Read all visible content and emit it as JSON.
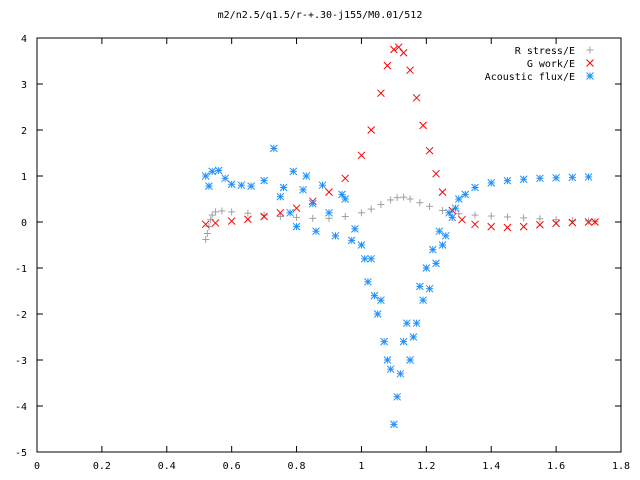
{
  "chart_data": {
    "type": "scatter",
    "title": "m2/n2.5/q1.5/r-+.30-j155/M0.01/512",
    "xlabel": "",
    "ylabel": "",
    "xlim": [
      0,
      1.8
    ],
    "ylim": [
      -5,
      4
    ],
    "xticks": [
      "0",
      "0.2",
      "0.4",
      "0.6",
      "0.8",
      "1",
      "1.2",
      "1.4",
      "1.6",
      "1.8"
    ],
    "yticks": [
      "4",
      "3",
      "2",
      "1",
      "0",
      "-1",
      "-2",
      "-3",
      "-4",
      "-5"
    ],
    "grid": false,
    "legend_position": "top-right",
    "series": [
      {
        "name": "R stress/E",
        "marker": "plus",
        "color": "#a0a0a0",
        "points": [
          [
            0.52,
            -0.38
          ],
          [
            0.525,
            -0.25
          ],
          [
            0.53,
            -0.1
          ],
          [
            0.535,
            0.05
          ],
          [
            0.54,
            0.15
          ],
          [
            0.55,
            0.22
          ],
          [
            0.57,
            0.24
          ],
          [
            0.6,
            0.22
          ],
          [
            0.65,
            0.19
          ],
          [
            0.7,
            0.15
          ],
          [
            0.75,
            0.12
          ],
          [
            0.8,
            0.1
          ],
          [
            0.85,
            0.08
          ],
          [
            0.9,
            0.08
          ],
          [
            0.95,
            0.12
          ],
          [
            1.0,
            0.2
          ],
          [
            1.03,
            0.28
          ],
          [
            1.06,
            0.38
          ],
          [
            1.09,
            0.48
          ],
          [
            1.11,
            0.53
          ],
          [
            1.13,
            0.54
          ],
          [
            1.15,
            0.5
          ],
          [
            1.18,
            0.42
          ],
          [
            1.21,
            0.34
          ],
          [
            1.25,
            0.25
          ],
          [
            1.3,
            0.18
          ],
          [
            1.35,
            0.15
          ],
          [
            1.4,
            0.13
          ],
          [
            1.45,
            0.11
          ],
          [
            1.5,
            0.09
          ],
          [
            1.55,
            0.07
          ],
          [
            1.6,
            0.05
          ],
          [
            1.65,
            0.03
          ],
          [
            1.7,
            0.02
          ],
          [
            1.72,
            0.01
          ]
        ]
      },
      {
        "name": "G work/E",
        "marker": "cross",
        "color": "#ff0000",
        "points": [
          [
            0.52,
            -0.05
          ],
          [
            0.55,
            -0.02
          ],
          [
            0.6,
            0.02
          ],
          [
            0.65,
            0.06
          ],
          [
            0.7,
            0.12
          ],
          [
            0.75,
            0.2
          ],
          [
            0.8,
            0.3
          ],
          [
            0.85,
            0.45
          ],
          [
            0.9,
            0.65
          ],
          [
            0.95,
            0.95
          ],
          [
            1.0,
            1.45
          ],
          [
            1.03,
            2.0
          ],
          [
            1.06,
            2.8
          ],
          [
            1.08,
            3.4
          ],
          [
            1.1,
            3.75
          ],
          [
            1.115,
            3.8
          ],
          [
            1.13,
            3.68
          ],
          [
            1.15,
            3.3
          ],
          [
            1.17,
            2.7
          ],
          [
            1.19,
            2.1
          ],
          [
            1.21,
            1.55
          ],
          [
            1.23,
            1.05
          ],
          [
            1.25,
            0.65
          ],
          [
            1.28,
            0.25
          ],
          [
            1.31,
            0.05
          ],
          [
            1.35,
            -0.05
          ],
          [
            1.4,
            -0.1
          ],
          [
            1.45,
            -0.12
          ],
          [
            1.5,
            -0.1
          ],
          [
            1.55,
            -0.06
          ],
          [
            1.6,
            -0.03
          ],
          [
            1.65,
            -0.01
          ],
          [
            1.7,
            0.0
          ],
          [
            1.72,
            0.0
          ]
        ]
      },
      {
        "name": "Acoustic flux/E",
        "marker": "star",
        "color": "#1e90ff",
        "points": [
          [
            0.52,
            1.0
          ],
          [
            0.53,
            0.78
          ],
          [
            0.54,
            1.1
          ],
          [
            0.56,
            1.12
          ],
          [
            0.58,
            0.95
          ],
          [
            0.6,
            0.82
          ],
          [
            0.63,
            0.8
          ],
          [
            0.66,
            0.78
          ],
          [
            0.7,
            0.9
          ],
          [
            0.73,
            1.6
          ],
          [
            0.75,
            0.55
          ],
          [
            0.76,
            0.75
          ],
          [
            0.78,
            0.2
          ],
          [
            0.79,
            1.1
          ],
          [
            0.8,
            -0.1
          ],
          [
            0.82,
            0.7
          ],
          [
            0.83,
            1.0
          ],
          [
            0.85,
            0.4
          ],
          [
            0.86,
            -0.2
          ],
          [
            0.88,
            0.8
          ],
          [
            0.9,
            0.2
          ],
          [
            0.92,
            -0.3
          ],
          [
            0.94,
            0.6
          ],
          [
            0.95,
            0.5
          ],
          [
            0.97,
            -0.4
          ],
          [
            0.98,
            -0.15
          ],
          [
            1.0,
            -0.5
          ],
          [
            1.01,
            -0.8
          ],
          [
            1.02,
            -1.3
          ],
          [
            1.03,
            -0.8
          ],
          [
            1.04,
            -1.6
          ],
          [
            1.05,
            -2.0
          ],
          [
            1.06,
            -1.7
          ],
          [
            1.07,
            -2.6
          ],
          [
            1.08,
            -3.0
          ],
          [
            1.09,
            -3.2
          ],
          [
            1.1,
            -4.4
          ],
          [
            1.11,
            -3.8
          ],
          [
            1.12,
            -3.3
          ],
          [
            1.13,
            -2.6
          ],
          [
            1.14,
            -2.2
          ],
          [
            1.15,
            -3.0
          ],
          [
            1.16,
            -2.5
          ],
          [
            1.17,
            -2.2
          ],
          [
            1.18,
            -1.4
          ],
          [
            1.19,
            -1.7
          ],
          [
            1.2,
            -1.0
          ],
          [
            1.21,
            -1.45
          ],
          [
            1.22,
            -0.6
          ],
          [
            1.23,
            -0.9
          ],
          [
            1.24,
            -0.2
          ],
          [
            1.25,
            -0.5
          ],
          [
            1.26,
            -0.3
          ],
          [
            1.27,
            0.2
          ],
          [
            1.28,
            0.1
          ],
          [
            1.29,
            0.3
          ],
          [
            1.3,
            0.5
          ],
          [
            1.32,
            0.6
          ],
          [
            1.35,
            0.75
          ],
          [
            1.4,
            0.85
          ],
          [
            1.45,
            0.9
          ],
          [
            1.5,
            0.93
          ],
          [
            1.55,
            0.95
          ],
          [
            1.6,
            0.96
          ],
          [
            1.65,
            0.97
          ],
          [
            1.7,
            0.98
          ]
        ]
      }
    ]
  }
}
